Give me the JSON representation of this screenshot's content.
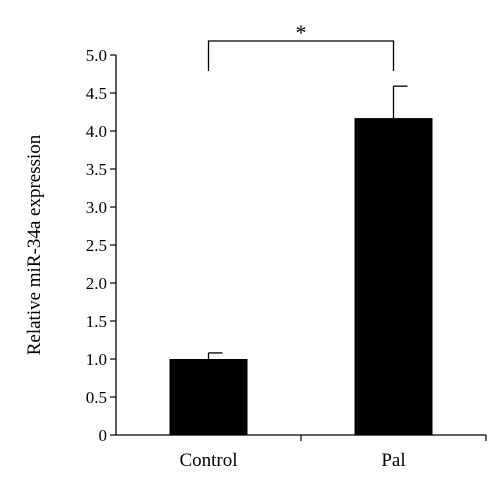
{
  "chart_data": {
    "type": "bar",
    "title": "",
    "xlabel": "",
    "ylabel": "Relative miR-34a expression",
    "categories": [
      "Control",
      "Pal"
    ],
    "values": [
      1.0,
      4.17
    ],
    "error_upper": [
      0.08,
      0.42
    ],
    "ylim": [
      0,
      5.0
    ],
    "yticks": [
      0,
      0.5,
      1.0,
      1.5,
      2.0,
      2.5,
      3.0,
      3.5,
      4.0,
      4.5,
      5.0
    ],
    "ytick_labels": [
      "0",
      "0.5",
      "1.0",
      "1.5",
      "2.0",
      "2.5",
      "3.0",
      "3.5",
      "4.0",
      "4.5",
      "5.0"
    ],
    "grid": false,
    "bar_color": "#000000",
    "significance": {
      "between": [
        "Control",
        "Pal"
      ],
      "label": "*"
    }
  }
}
